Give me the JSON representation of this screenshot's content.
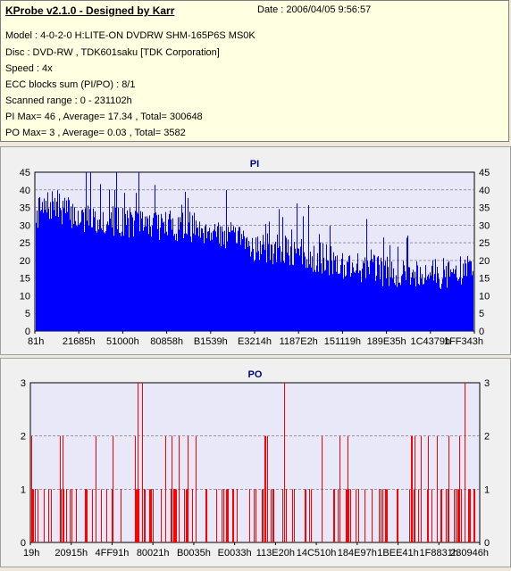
{
  "header": {
    "title": "KProbe v2.1.0 - Designed by Karr",
    "date": "Date : 2006/04/05 9:56:57",
    "lines": [
      "Model : 4-0-2-0 H:LITE-ON DVDRW SHM-165P6S MS0K",
      "Disc : DVD-RW , TDK601saku [TDK Corporation]",
      "Speed : 4x",
      "ECC blocks sum (PI/PO) : 8/1",
      "Scanned range : 0 - 231102h",
      "PI Max= 46 , Average= 17.34 , Total= 300648",
      "PO Max= 3 , Average= 0.03 , Total= 3582"
    ]
  },
  "colors": {
    "pi": "#0000ff",
    "po": "#ff0000",
    "plot_bg": "#e8e8f8",
    "grid": "#606060"
  },
  "chart_data": [
    {
      "type": "bar",
      "title": "PI",
      "ylim": [
        0,
        45
      ],
      "yticks": [
        0,
        5,
        10,
        15,
        20,
        25,
        30,
        35,
        40,
        45
      ],
      "xtick_labels": [
        "81h",
        "21685h",
        "51000h",
        "80858h",
        "B1539h",
        "E3214h",
        "1187E2h",
        "151119h",
        "189E35h",
        "1C4379h",
        "1FF343h"
      ],
      "stats": {
        "max": 46,
        "average": 17.34,
        "total": 300648
      },
      "trend": [
        [
          0,
          33
        ],
        [
          0.04,
          36
        ],
        [
          0.1,
          32
        ],
        [
          0.2,
          31
        ],
        [
          0.3,
          30
        ],
        [
          0.4,
          29
        ],
        [
          0.45,
          26
        ],
        [
          0.5,
          24
        ],
        [
          0.6,
          22
        ],
        [
          0.7,
          19
        ],
        [
          0.8,
          17
        ],
        [
          0.9,
          16
        ],
        [
          1,
          17
        ]
      ]
    },
    {
      "type": "bar",
      "title": "PO",
      "ylim": [
        0,
        3
      ],
      "yticks": [
        0,
        1,
        2,
        3
      ],
      "xtick_labels": [
        "19h",
        "20915h",
        "4FF91h",
        "80021h",
        "B0035h",
        "E0033h",
        "113E20h",
        "14C510h",
        "184E97h",
        "1BEE41h",
        "1F8831h",
        "230946h"
      ],
      "stats": {
        "max": 3,
        "average": 0.03,
        "total": 3582
      },
      "spikes_at_3": [
        0.238,
        0.247,
        0.565,
        0.968
      ]
    }
  ]
}
